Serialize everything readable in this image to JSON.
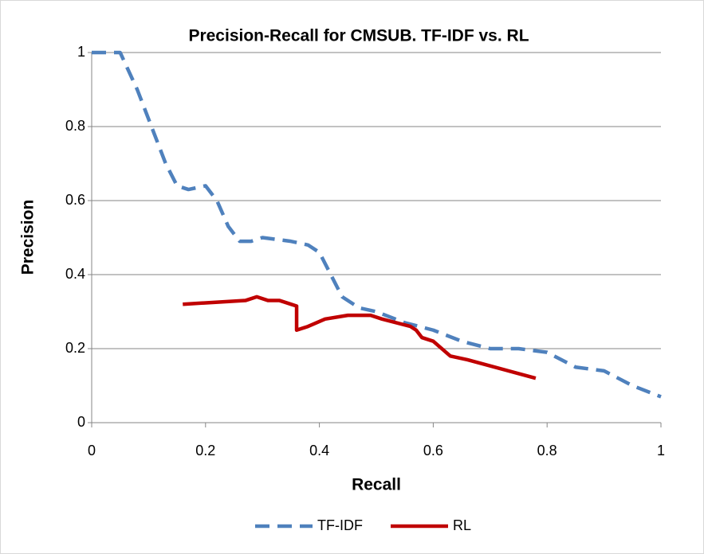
{
  "chart_data": {
    "type": "line",
    "title": "Precision-Recall  for CMSUB. TF-IDF vs. RL",
    "x_label": "Recall",
    "y_label": "Precision",
    "series": [
      {
        "name": "TF-IDF",
        "color": "#4f81bd",
        "dashed": true,
        "x": [
          0,
          0.05,
          0.08,
          0.11,
          0.13,
          0.15,
          0.17,
          0.2,
          0.22,
          0.24,
          0.26,
          0.28,
          0.3,
          0.35,
          0.38,
          0.4,
          0.42,
          0.44,
          0.47,
          0.5,
          0.55,
          0.6,
          0.65,
          0.7,
          0.75,
          0.8,
          0.85,
          0.9,
          0.95,
          1
        ],
        "values": [
          1,
          1,
          0.9,
          0.78,
          0.7,
          0.64,
          0.63,
          0.64,
          0.6,
          0.53,
          0.49,
          0.49,
          0.5,
          0.49,
          0.48,
          0.46,
          0.4,
          0.34,
          0.31,
          0.3,
          0.27,
          0.25,
          0.22,
          0.2,
          0.2,
          0.19,
          0.15,
          0.14,
          0.1,
          0.07
        ]
      },
      {
        "name": "RL",
        "color": "#c00000",
        "dashed": false,
        "x": [
          0.16,
          0.27,
          0.29,
          0.31,
          0.33,
          0.35,
          0.36,
          0.36,
          0.38,
          0.41,
          0.45,
          0.49,
          0.51,
          0.56,
          0.57,
          0.58,
          0.6,
          0.63,
          0.66,
          0.78
        ],
        "values": [
          0.32,
          0.33,
          0.34,
          0.33,
          0.33,
          0.32,
          0.315,
          0.25,
          0.26,
          0.28,
          0.29,
          0.29,
          0.28,
          0.26,
          0.25,
          0.23,
          0.22,
          0.18,
          0.17,
          0.12
        ]
      }
    ],
    "xlim": [
      0,
      1
    ],
    "xticks": [
      0,
      0.2,
      0.4,
      0.6,
      0.8,
      1
    ],
    "ylim": [
      0,
      1
    ],
    "yticks": [
      0,
      0.2,
      0.4,
      0.6,
      0.8,
      1
    ],
    "grid": true,
    "legend": "bottom"
  }
}
